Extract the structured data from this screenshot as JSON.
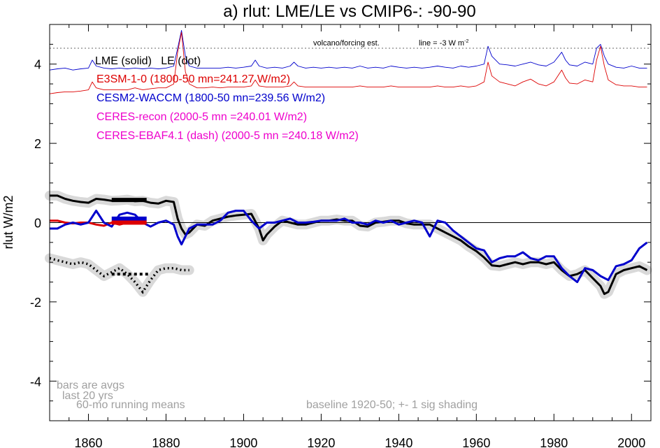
{
  "chart_data": {
    "type": "line",
    "title": "a) rlut: LME/LE vs CMIP6-: -90-90",
    "ylabel": "rlut W/m2",
    "xlabel": "",
    "xlim": [
      1850,
      2005
    ],
    "ylim": [
      -5,
      5
    ],
    "x_ticks": [
      1860,
      1880,
      1900,
      1920,
      1940,
      1960,
      1980,
      2000
    ],
    "x_tick_labels": [
      "1860",
      "1880",
      "1900",
      "1920",
      "1940",
      "1960",
      "1980",
      "2000"
    ],
    "y_ticks": [
      4,
      2,
      0,
      -2,
      -4
    ],
    "y_tick_labels": [
      "4",
      "2",
      "0",
      "-2",
      "-4"
    ],
    "legend": [
      {
        "text": "LME (solid)   LE (dot)",
        "color": "#000000"
      },
      {
        "text": "E3SM-1-0 (1800-50 mn=241.27 W/m2)",
        "color": "#dd0000"
      },
      {
        "text": "CESM2-WACCM (1800-50 mn=239.56 W/m2)",
        "color": "#0000cc"
      },
      {
        "text": "CERES-recon (2000-5 mn =240.01 W/m2)",
        "color": "#ee00cc"
      },
      {
        "text": "CERES-EBAF4.1 (dash) (2000-5 mn =240.18 W/m2)",
        "color": "#ee00cc"
      }
    ],
    "annotations": {
      "volcano_label": "volcano/forcing est.",
      "line_label": "line = -3 W m",
      "line_label_sup": "-2",
      "bars_note_1": "bars are avgs",
      "bars_note_2": "last 20 yrs",
      "running_note": "60-mo running means",
      "baseline_note": "baseline 1920-50; +- 1 sig shading"
    },
    "reference_line_y": 4.4,
    "zero_line_y": 0,
    "series": [
      {
        "name": "LME (solid)",
        "style": "solid",
        "color": "#000000",
        "shade": true,
        "x": [
          1850,
          1852,
          1854,
          1856,
          1858,
          1860,
          1862,
          1864,
          1866,
          1868,
          1870,
          1872,
          1874,
          1876,
          1878,
          1880,
          1882,
          1883,
          1884,
          1885,
          1886,
          1888,
          1890,
          1892,
          1894,
          1896,
          1898,
          1900,
          1902,
          1904,
          1905,
          1906,
          1908,
          1910,
          1912,
          1914,
          1916,
          1918,
          1920,
          1922,
          1924,
          1926,
          1928,
          1930,
          1932,
          1934,
          1936,
          1938,
          1940,
          1942,
          1944,
          1946,
          1948,
          1950,
          1952,
          1954,
          1956,
          1958,
          1960,
          1962,
          1964,
          1966,
          1968,
          1970,
          1972,
          1974,
          1976,
          1978,
          1980,
          1982,
          1984,
          1986,
          1988,
          1990,
          1992,
          1993,
          1994,
          1996,
          1998,
          2000,
          2002,
          2004
        ],
        "y": [
          0.68,
          0.68,
          0.6,
          0.55,
          0.52,
          0.5,
          0.6,
          0.58,
          0.55,
          0.56,
          0.58,
          0.54,
          0.55,
          0.5,
          0.48,
          0.55,
          0.52,
          0.1,
          -0.15,
          -0.3,
          -0.25,
          -0.05,
          -0.08,
          0.05,
          0.1,
          0.15,
          0.18,
          0.2,
          0.22,
          -0.15,
          -0.45,
          -0.3,
          -0.1,
          0.05,
          0.0,
          -0.05,
          -0.05,
          0.0,
          0.05,
          0.05,
          0.08,
          0.05,
          0.05,
          -0.08,
          -0.1,
          0.0,
          0.02,
          0.05,
          0.05,
          -0.02,
          -0.05,
          -0.05,
          -0.05,
          -0.15,
          -0.25,
          -0.35,
          -0.45,
          -0.6,
          -0.72,
          -0.88,
          -1.08,
          -1.1,
          -1.05,
          -1.0,
          -1.05,
          -1.0,
          -1.0,
          -1.05,
          -1.0,
          -1.2,
          -1.35,
          -1.3,
          -1.2,
          -1.4,
          -1.6,
          -1.8,
          -1.75,
          -1.3,
          -1.2,
          -1.15,
          -1.1,
          -1.2
        ]
      },
      {
        "name": "LE (dot)",
        "style": "dot",
        "color": "#000000",
        "shade": true,
        "x": [
          1850,
          1852,
          1854,
          1856,
          1858,
          1860,
          1862,
          1864,
          1866,
          1868,
          1870,
          1872,
          1874,
          1876,
          1878,
          1880,
          1882,
          1884,
          1886
        ],
        "y": [
          -0.9,
          -0.95,
          -1.0,
          -1.05,
          -1.0,
          -1.05,
          -1.2,
          -1.35,
          -1.25,
          -1.15,
          -1.3,
          -1.5,
          -1.75,
          -1.45,
          -1.2,
          -1.15,
          -1.15,
          -1.2,
          -1.2
        ]
      },
      {
        "name": "E3SM-1-0",
        "style": "solid",
        "color": "#dd0000",
        "shade": false,
        "x": [
          1850,
          1852,
          1854,
          1856,
          1858,
          1860,
          1862,
          1864,
          1866,
          1868,
          1870
        ],
        "y": [
          0.05,
          0.05,
          0.0,
          -0.02,
          0.0,
          0.0,
          -0.05,
          -0.08,
          0.0,
          -0.05,
          0.0
        ]
      },
      {
        "name": "CESM2-WACCM",
        "style": "solid",
        "color": "#0000cc",
        "shade": false,
        "x": [
          1850,
          1852,
          1854,
          1856,
          1858,
          1860,
          1862,
          1864,
          1866,
          1868,
          1870,
          1872,
          1874,
          1876,
          1878,
          1880,
          1882,
          1883,
          1884,
          1886,
          1888,
          1890,
          1892,
          1894,
          1896,
          1898,
          1900,
          1902,
          1904,
          1906,
          1908,
          1910,
          1912,
          1914,
          1916,
          1918,
          1920,
          1922,
          1924,
          1926,
          1928,
          1930,
          1932,
          1934,
          1936,
          1938,
          1940,
          1942,
          1944,
          1946,
          1948,
          1950,
          1952,
          1954,
          1956,
          1958,
          1960,
          1962,
          1964,
          1966,
          1968,
          1970,
          1972,
          1974,
          1976,
          1978,
          1980,
          1982,
          1984,
          1986,
          1988,
          1990,
          1992,
          1994,
          1996,
          1998,
          2000,
          2002,
          2004
        ],
        "y": [
          -0.15,
          -0.15,
          -0.05,
          0.0,
          -0.05,
          0.0,
          0.3,
          0.0,
          -0.1,
          0.2,
          0.25,
          0.2,
          0.0,
          -0.1,
          0.0,
          0.05,
          -0.05,
          -0.35,
          -0.55,
          -0.15,
          -0.05,
          -0.05,
          -0.05,
          0.05,
          0.25,
          0.3,
          0.3,
          0.05,
          -0.15,
          0.0,
          0.0,
          0.05,
          0.1,
          0.0,
          0.0,
          0.02,
          0.05,
          0.05,
          0.05,
          0.1,
          0.0,
          0.0,
          -0.05,
          0.05,
          0.0,
          0.05,
          -0.05,
          0.0,
          0.05,
          0.0,
          -0.35,
          0.05,
          0.0,
          -0.2,
          -0.35,
          -0.5,
          -0.65,
          -0.7,
          -1.0,
          -0.9,
          -0.85,
          -0.85,
          -0.75,
          -0.9,
          -0.95,
          -0.85,
          -0.85,
          -1.15,
          -1.35,
          -1.5,
          -1.15,
          -1.2,
          -1.35,
          -1.45,
          -1.1,
          -1.05,
          -0.95,
          -0.65,
          -0.5
        ]
      },
      {
        "name": "LME forcing estimate",
        "style": "thin",
        "color": "#0000cc",
        "shade": false,
        "x": [
          1850,
          1852,
          1854,
          1856,
          1858,
          1860,
          1861,
          1862,
          1864,
          1866,
          1868,
          1870,
          1872,
          1874,
          1876,
          1878,
          1880,
          1882,
          1883,
          1884,
          1885,
          1886,
          1888,
          1890,
          1892,
          1894,
          1896,
          1898,
          1900,
          1902,
          1903,
          1904,
          1906,
          1908,
          1910,
          1912,
          1913,
          1914,
          1916,
          1918,
          1920,
          1922,
          1924,
          1926,
          1928,
          1930,
          1932,
          1934,
          1936,
          1938,
          1940,
          1942,
          1944,
          1946,
          1948,
          1950,
          1952,
          1954,
          1956,
          1958,
          1960,
          1962,
          1963,
          1964,
          1966,
          1968,
          1970,
          1972,
          1974,
          1976,
          1978,
          1980,
          1982,
          1983,
          1984,
          1986,
          1988,
          1990,
          1991,
          1992,
          1993,
          1994,
          1996,
          1998,
          2000,
          2002,
          2004
        ],
        "y": [
          3.85,
          3.88,
          3.9,
          3.85,
          3.88,
          3.9,
          4.1,
          3.95,
          3.9,
          3.88,
          3.9,
          3.88,
          3.9,
          3.88,
          3.9,
          3.88,
          3.9,
          3.95,
          4.4,
          4.85,
          4.2,
          3.95,
          3.9,
          3.9,
          3.9,
          3.9,
          3.92,
          3.9,
          3.92,
          3.95,
          4.1,
          3.95,
          3.9,
          3.92,
          3.9,
          3.95,
          4.05,
          3.95,
          3.9,
          3.92,
          3.9,
          3.92,
          3.9,
          3.92,
          3.9,
          3.95,
          3.9,
          3.92,
          3.9,
          3.95,
          3.92,
          3.9,
          3.92,
          3.9,
          3.92,
          3.95,
          3.92,
          3.9,
          3.95,
          3.92,
          3.95,
          4.0,
          4.45,
          4.2,
          4.0,
          3.98,
          3.95,
          4.0,
          4.05,
          3.98,
          3.95,
          4.05,
          4.3,
          4.1,
          3.98,
          3.95,
          4.05,
          4.0,
          4.4,
          4.5,
          4.2,
          4.0,
          3.92,
          3.9,
          3.95,
          3.9,
          3.9
        ]
      },
      {
        "name": "E3SM forcing estimate",
        "style": "thin",
        "color": "#dd0000",
        "shade": false,
        "x": [
          1850,
          1852,
          1854,
          1856,
          1858,
          1860,
          1861,
          1862,
          1864,
          1866,
          1868,
          1870,
          1872,
          1874,
          1876,
          1878,
          1880,
          1882,
          1883,
          1884,
          1885,
          1886,
          1888,
          1890,
          1892,
          1894,
          1896,
          1898,
          1900,
          1902,
          1903,
          1904,
          1906,
          1908,
          1910,
          1912,
          1913,
          1914,
          1916,
          1918,
          1920,
          1922,
          1924,
          1926,
          1928,
          1930,
          1932,
          1934,
          1936,
          1938,
          1940,
          1942,
          1944,
          1946,
          1948,
          1950,
          1952,
          1954,
          1956,
          1958,
          1960,
          1962,
          1963,
          1964,
          1966,
          1968,
          1970,
          1972,
          1974,
          1976,
          1978,
          1980,
          1982,
          1983,
          1984,
          1986,
          1988,
          1990,
          1991,
          1992,
          1993,
          1994,
          1996,
          1998,
          2000,
          2002,
          2004
        ],
        "y": [
          3.25,
          3.28,
          3.3,
          3.3,
          3.32,
          3.35,
          3.55,
          3.4,
          3.35,
          3.35,
          3.35,
          3.35,
          3.4,
          3.35,
          3.38,
          3.4,
          3.4,
          3.5,
          4.3,
          4.8,
          3.8,
          3.5,
          3.4,
          3.4,
          3.42,
          3.4,
          3.42,
          3.42,
          3.42,
          3.45,
          3.6,
          3.45,
          3.42,
          3.42,
          3.42,
          3.45,
          3.55,
          3.45,
          3.42,
          3.42,
          3.42,
          3.42,
          3.42,
          3.42,
          3.42,
          3.45,
          3.42,
          3.42,
          3.42,
          3.45,
          3.42,
          3.42,
          3.42,
          3.42,
          3.42,
          3.45,
          3.42,
          3.42,
          3.45,
          3.42,
          3.45,
          3.55,
          4.05,
          3.7,
          3.55,
          3.5,
          3.45,
          3.55,
          3.62,
          3.5,
          3.45,
          3.55,
          3.85,
          3.65,
          3.52,
          3.5,
          3.6,
          3.55,
          4.1,
          4.45,
          3.95,
          3.6,
          3.48,
          3.45,
          3.45,
          3.42,
          3.42
        ]
      }
    ],
    "bars": [
      {
        "series": "LME (solid)",
        "x": [
          1866,
          1875
        ],
        "y": 0.57,
        "color": "#000000",
        "style": "solid"
      },
      {
        "series": "CESM2-WACCM",
        "x": [
          1866,
          1875
        ],
        "y": 0.1,
        "color": "#0000cc",
        "style": "solid"
      },
      {
        "series": "E3SM-1-0",
        "x": [
          1866,
          1875
        ],
        "y": 0.0,
        "color": "#dd0000",
        "style": "solid"
      },
      {
        "series": "LE (dot)",
        "x": [
          1866,
          1876
        ],
        "y": -1.3,
        "color": "#000000",
        "style": "dot"
      }
    ]
  }
}
